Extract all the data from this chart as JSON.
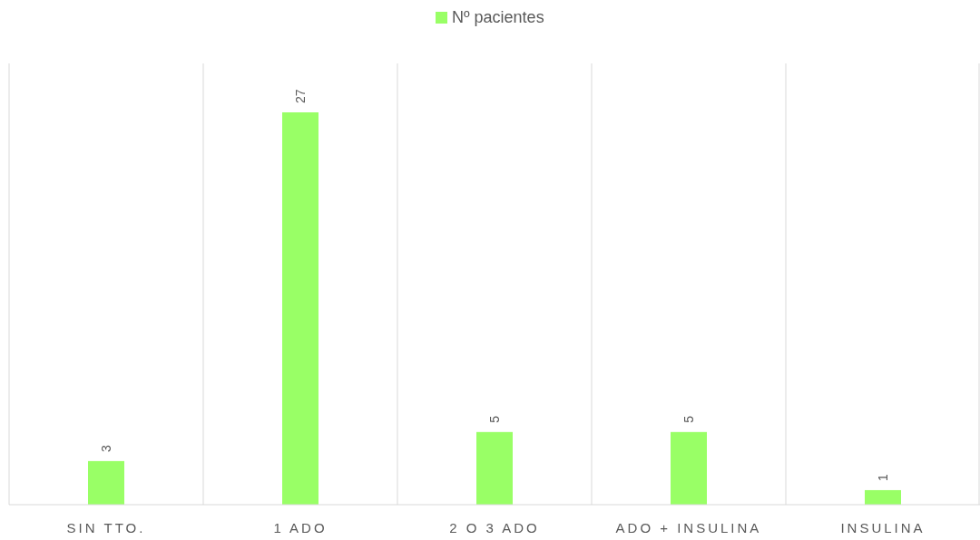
{
  "chart_data": {
    "type": "bar",
    "categories": [
      "SIN TTO.",
      "1 ADO",
      "2 O 3 ADO",
      "ADO + INSULINA",
      "INSULINA"
    ],
    "series": [
      {
        "name": "Nº pacientes",
        "color": "#99ff66",
        "values": [
          3,
          27,
          5,
          5,
          1
        ]
      }
    ],
    "data_labels": true,
    "grid": "x",
    "legend": "top"
  }
}
